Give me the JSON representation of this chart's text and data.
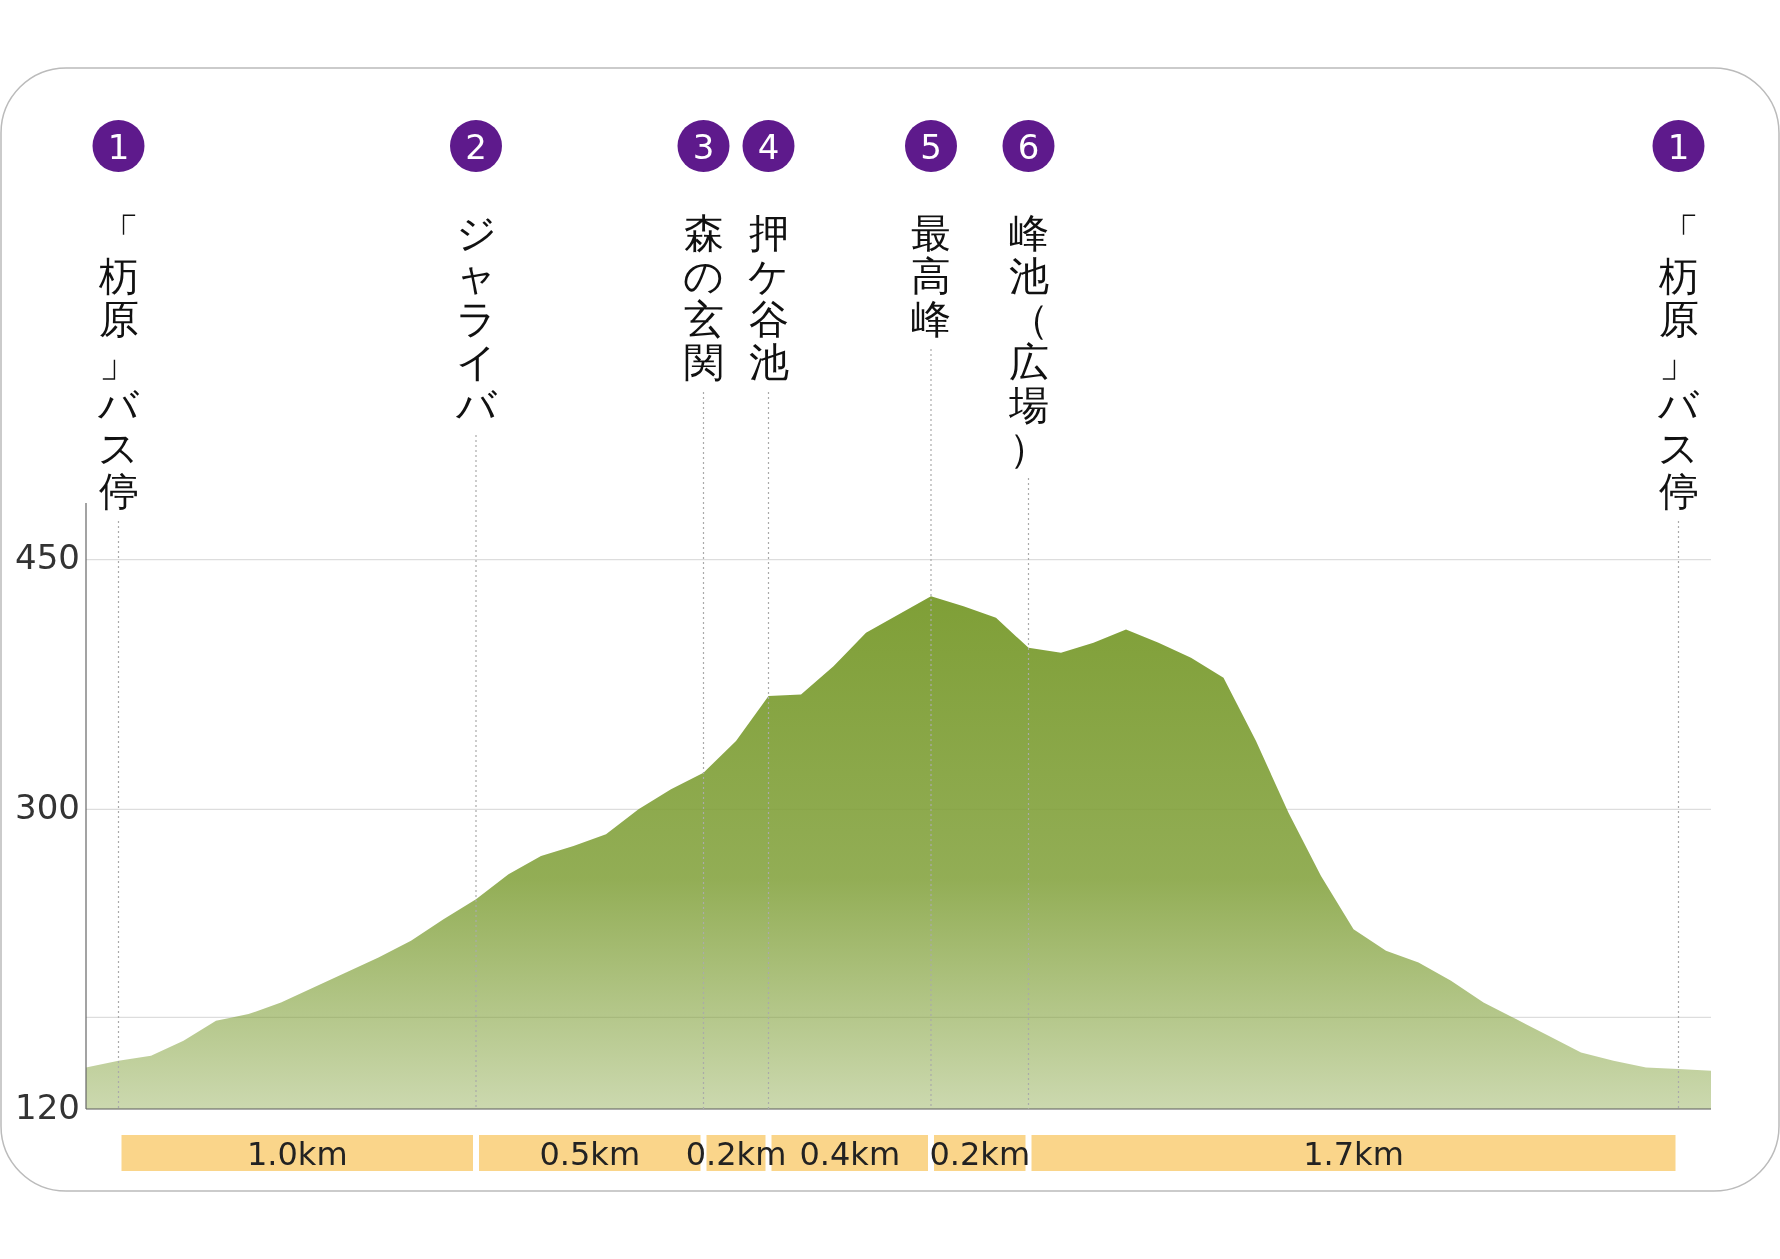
{
  "chart_data": {
    "type": "area",
    "categories": [
      null,
      "「杤原」バス停",
      null,
      null,
      null,
      null,
      null,
      null,
      null,
      null,
      null,
      null,
      "ジャライバ",
      null,
      null,
      null,
      null,
      null,
      null,
      "森の玄関",
      null,
      "押ケ谷池",
      null,
      null,
      null,
      null,
      "最高峰",
      null,
      null,
      "峰池（広場）",
      null,
      null,
      null,
      null,
      null,
      null,
      null,
      null,
      null,
      null,
      null,
      null,
      null,
      null,
      null,
      null,
      null,
      null,
      null,
      "「杤原」バス停",
      null
    ],
    "values": [
      145,
      149,
      152,
      161,
      173,
      177,
      184,
      193,
      202,
      211,
      221,
      234,
      246,
      261,
      272,
      278,
      285,
      300,
      312,
      322,
      341,
      368,
      369,
      386,
      406,
      417,
      428,
      422,
      415,
      397,
      394,
      400,
      408,
      400,
      391,
      379,
      341,
      298,
      260,
      228,
      215,
      208,
      197,
      184,
      174,
      164,
      154,
      149,
      145,
      144,
      143
    ],
    "color": "#7f9f37",
    "ylim": [
      120,
      484
    ],
    "yticks": [
      120,
      {
        "value": 175,
        "label": null
      },
      300,
      450
    ],
    "grid": true,
    "annotations": [
      "1",
      "2",
      "3",
      "4",
      "5",
      "6",
      "1",
      "1.0km",
      "0.5km",
      "0.2km",
      "0.4km",
      "0.2km",
      "1.7km"
    ]
  }
}
